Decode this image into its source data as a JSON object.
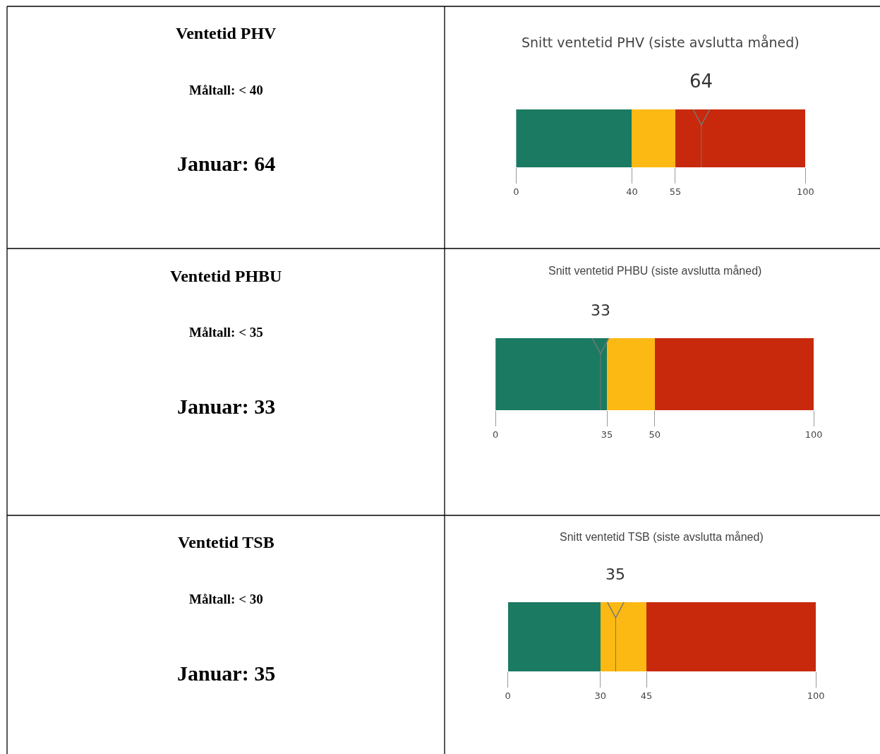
{
  "chart_data": [
    {
      "type": "other",
      "title": "Ventetid PHV",
      "annotations": [
        "Måltall: < 40",
        "Januar: 64"
      ]
    },
    {
      "type": "bar",
      "orientation": "horizontal",
      "stacked": true,
      "title": "Snitt ventetid PHV (siste avslutta måned)",
      "categories": [
        null
      ],
      "xlim": [
        0,
        100
      ],
      "xticks": [
        0,
        40,
        55,
        100
      ],
      "tick_labels": "x",
      "series": [
        {
          "color": "#1b7a62",
          "values": [
            40
          ]
        },
        {
          "color": "#fdb913",
          "values": [
            15
          ]
        },
        {
          "color": "#c8290c",
          "values": [
            45
          ]
        }
      ],
      "ref_lines": [
        {
          "axis": "x",
          "value": 64,
          "label": "64",
          "color": "#777777"
        }
      ]
    },
    {
      "type": "other",
      "title": "Ventetid PHBU",
      "annotations": [
        "Måltall: < 35",
        "Januar: 33"
      ]
    },
    {
      "type": "bar",
      "orientation": "horizontal",
      "stacked": true,
      "title": "Snitt ventetid PHBU (siste avslutta måned)",
      "categories": [
        null
      ],
      "xlim": [
        0,
        100
      ],
      "xticks": [
        0,
        35,
        50,
        100
      ],
      "tick_labels": "x",
      "series": [
        {
          "color": "#1b7a62",
          "values": [
            35
          ]
        },
        {
          "color": "#fdb913",
          "values": [
            15
          ]
        },
        {
          "color": "#c8290c",
          "values": [
            50
          ]
        }
      ],
      "ref_lines": [
        {
          "axis": "x",
          "value": 33,
          "label": "33",
          "color": "#777777"
        }
      ]
    },
    {
      "type": "other",
      "title": "Ventetid TSB",
      "annotations": [
        "Måltall: < 30",
        "Januar: 35"
      ]
    },
    {
      "type": "bar",
      "orientation": "horizontal",
      "stacked": true,
      "title": "Snitt ventetid TSB (siste avslutta måned)",
      "categories": [
        null
      ],
      "xlim": [
        0,
        100
      ],
      "xticks": [
        0,
        30,
        45,
        100
      ],
      "tick_labels": "x",
      "series": [
        {
          "color": "#1b7a62",
          "values": [
            30
          ]
        },
        {
          "color": "#fdb913",
          "values": [
            15
          ]
        },
        {
          "color": "#c8290c",
          "values": [
            55
          ]
        }
      ],
      "ref_lines": [
        {
          "axis": "x",
          "value": 35,
          "label": "35",
          "color": "#777777"
        }
      ]
    }
  ]
}
